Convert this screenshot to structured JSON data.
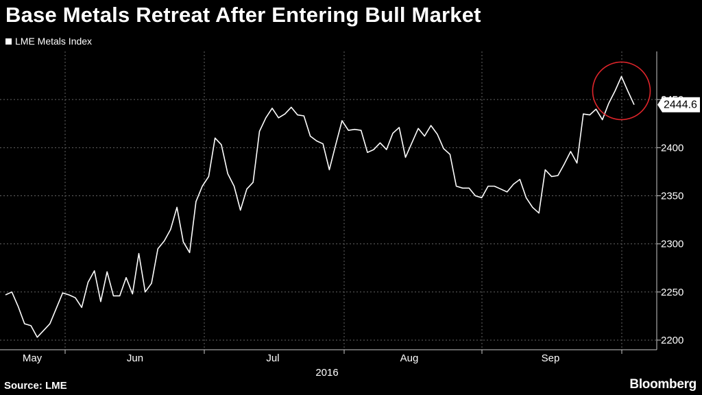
{
  "title": "Base Metals Retreat After Entering Bull Market",
  "legend_label": "LME Metals Index",
  "source": "Source: LME",
  "brand": "Bloomberg",
  "colors": {
    "background": "#000000",
    "line": "#ffffff",
    "grid": "#666666",
    "highlight": "#e0252b"
  },
  "chart_data": {
    "type": "line",
    "title": "Base Metals Retreat After Entering Bull Market",
    "series": [
      {
        "name": "LME Metals Index",
        "values": [
          2247,
          2250,
          2235,
          2217,
          2215,
          2203,
          2210,
          2217,
          2233,
          2249,
          2247,
          2244,
          2234,
          2260,
          2272,
          2240,
          2271,
          2246,
          2246,
          2265,
          2248,
          2290,
          2250,
          2259,
          2295,
          2303,
          2315,
          2338,
          2302,
          2291,
          2344,
          2360,
          2370,
          2410,
          2403,
          2373,
          2360,
          2335,
          2357,
          2364,
          2417,
          2431,
          2441,
          2431,
          2435,
          2442,
          2434,
          2433,
          2412,
          2407,
          2404,
          2377,
          2403,
          2428,
          2418,
          2419,
          2418,
          2395,
          2398,
          2405,
          2398,
          2415,
          2421,
          2390,
          2405,
          2420,
          2412,
          2423,
          2414,
          2399,
          2393,
          2360,
          2358,
          2358,
          2350,
          2348,
          2360,
          2360,
          2357,
          2354,
          2362,
          2367,
          2348,
          2338,
          2332,
          2377,
          2370,
          2371,
          2383,
          2396,
          2384,
          2435,
          2434,
          2440,
          2429,
          2446,
          2459,
          2474,
          2459,
          2444.6
        ]
      }
    ],
    "x_labels": [
      "May",
      "Jun",
      "Jul",
      "Aug",
      "Sep"
    ],
    "year_label": "2016",
    "y_ticks": [
      2200,
      2250,
      2300,
      2350,
      2400,
      2450
    ],
    "ylim": [
      2190,
      2500
    ],
    "last_value_label": "2444.6",
    "highlight": "circle around the recent peak",
    "grid": true
  }
}
